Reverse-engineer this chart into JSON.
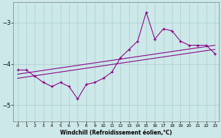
{
  "xlabel": "Windchill (Refroidissement éolien,°C)",
  "background_color": "#cce8e8",
  "grid_color": "#aacccc",
  "line_color": "#880088",
  "xlim": [
    -0.5,
    23.5
  ],
  "ylim": [
    -5.4,
    -2.5
  ],
  "yticks": [
    -5,
    -4,
    -3
  ],
  "xticks": [
    0,
    1,
    2,
    3,
    4,
    5,
    6,
    7,
    8,
    9,
    10,
    11,
    12,
    13,
    14,
    15,
    16,
    17,
    18,
    19,
    20,
    21,
    22,
    23
  ],
  "line_zigzag_x": [
    0,
    1,
    2,
    3,
    4,
    5,
    6,
    7,
    8,
    9,
    10,
    11,
    12,
    13,
    14,
    15,
    16,
    17,
    18,
    19,
    20,
    21,
    22,
    23
  ],
  "line_zigzag_y": [
    -4.15,
    -4.15,
    -4.3,
    -4.45,
    -4.55,
    -4.45,
    -4.55,
    -4.85,
    -4.5,
    -4.45,
    -4.35,
    -4.2,
    -3.85,
    -3.65,
    -3.45,
    -2.75,
    -3.4,
    -3.15,
    -3.2,
    -3.45,
    -3.55,
    -3.55,
    -3.55,
    -3.75
  ],
  "line_trend1_x": [
    0,
    23
  ],
  "line_trend1_y": [
    -4.25,
    -3.55
  ],
  "line_trend2_x": [
    0,
    23
  ],
  "line_trend2_y": [
    -4.35,
    -3.65
  ]
}
